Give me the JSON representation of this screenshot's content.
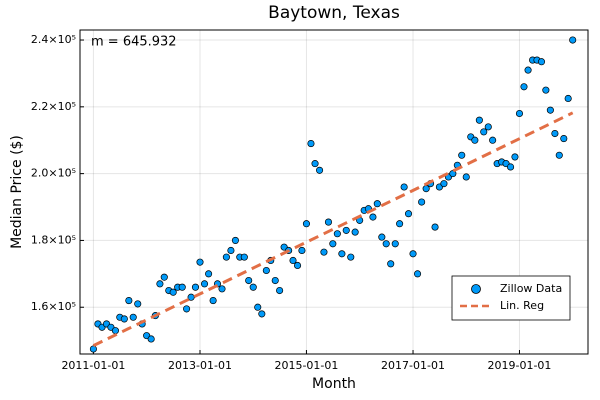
{
  "chart_data": {
    "type": "scatter",
    "title": "Baytown, Texas",
    "xlabel": "Month",
    "ylabel": "Median Price ($)",
    "annotation": "m = 645.932",
    "grid": true,
    "legend": "lower right",
    "xlim": [
      "2010-10-01",
      "2020-04-15"
    ],
    "xticks": [
      "2011-01-01",
      "2013-01-01",
      "2015-01-01",
      "2017-01-01",
      "2019-01-01"
    ],
    "ylim": [
      146000,
      243000
    ],
    "yticks": [
      {
        "value": 160000,
        "label": "1.6×10⁵"
      },
      {
        "value": 180000,
        "label": "1.8×10⁵"
      },
      {
        "value": 200000,
        "label": "2.0×10⁵"
      },
      {
        "value": 220000,
        "label": "2.2×10⁵"
      },
      {
        "value": 240000,
        "label": "2.4×10⁵"
      }
    ],
    "series": [
      {
        "name": "Zillow Data",
        "color": "#009af9",
        "kind": "scatter",
        "x": [
          "2011-01-01",
          "2011-02-01",
          "2011-03-01",
          "2011-04-01",
          "2011-05-01",
          "2011-06-01",
          "2011-07-01",
          "2011-08-01",
          "2011-09-01",
          "2011-10-01",
          "2011-11-01",
          "2011-12-01",
          "2012-01-01",
          "2012-02-01",
          "2012-03-01",
          "2012-04-01",
          "2012-05-01",
          "2012-06-01",
          "2012-07-01",
          "2012-08-01",
          "2012-09-01",
          "2012-10-01",
          "2012-11-01",
          "2012-12-01",
          "2013-01-01",
          "2013-02-01",
          "2013-03-01",
          "2013-04-01",
          "2013-05-01",
          "2013-06-01",
          "2013-07-01",
          "2013-08-01",
          "2013-09-01",
          "2013-10-01",
          "2013-11-01",
          "2013-12-01",
          "2014-01-01",
          "2014-02-01",
          "2014-03-01",
          "2014-04-01",
          "2014-05-01",
          "2014-06-01",
          "2014-07-01",
          "2014-08-01",
          "2014-09-01",
          "2014-10-01",
          "2014-11-01",
          "2014-12-01",
          "2015-01-01",
          "2015-02-01",
          "2015-03-01",
          "2015-04-01",
          "2015-05-01",
          "2015-06-01",
          "2015-07-01",
          "2015-08-01",
          "2015-09-01",
          "2015-10-01",
          "2015-11-01",
          "2015-12-01",
          "2016-01-01",
          "2016-02-01",
          "2016-03-01",
          "2016-04-01",
          "2016-05-01",
          "2016-06-01",
          "2016-07-01",
          "2016-08-01",
          "2016-09-01",
          "2016-10-01",
          "2016-11-01",
          "2016-12-01",
          "2017-01-01",
          "2017-02-01",
          "2017-03-01",
          "2017-04-01",
          "2017-05-01",
          "2017-06-01",
          "2017-07-01",
          "2017-08-01",
          "2017-09-01",
          "2017-10-01",
          "2017-11-01",
          "2017-12-01",
          "2018-01-01",
          "2018-02-01",
          "2018-03-01",
          "2018-04-01",
          "2018-05-01",
          "2018-06-01",
          "2018-07-01",
          "2018-08-01",
          "2018-09-01",
          "2018-10-01",
          "2018-11-01",
          "2018-12-01",
          "2019-01-01",
          "2019-02-01",
          "2019-03-01",
          "2019-04-01",
          "2019-05-01",
          "2019-06-01",
          "2019-07-01",
          "2019-08-01",
          "2019-09-01",
          "2019-10-01",
          "2019-11-01",
          "2019-12-01",
          "2020-01-01"
        ],
        "values": [
          147500,
          155000,
          154000,
          155000,
          154000,
          153000,
          157000,
          156500,
          162000,
          157000,
          161000,
          155000,
          151500,
          150500,
          157500,
          167000,
          169000,
          165000,
          164500,
          166000,
          166000,
          159500,
          163000,
          166000,
          173500,
          167000,
          170000,
          162000,
          167000,
          165500,
          175000,
          177000,
          180000,
          175000,
          175000,
          168000,
          166000,
          160000,
          158000,
          171000,
          174000,
          168000,
          165000,
          178000,
          177000,
          174000,
          172500,
          177000,
          185000,
          209000,
          203000,
          201000,
          176500,
          185500,
          179000,
          182000,
          176000,
          183000,
          175000,
          182500,
          186000,
          189000,
          189500,
          187000,
          191000,
          181000,
          179000,
          173000,
          179000,
          185000,
          196000,
          188000,
          176000,
          170000,
          191500,
          195500,
          197000,
          184000,
          196000,
          197000,
          199000,
          200000,
          202500,
          205500,
          199000,
          211000,
          210000,
          216000,
          212500,
          214000,
          210000,
          203000,
          203500,
          203000,
          202000,
          205000,
          218000,
          226000,
          231000,
          234000,
          234000,
          233500,
          225000,
          219000,
          212000,
          205500,
          210500,
          222500,
          240000
        ]
      },
      {
        "name": "Lin. Reg",
        "color": "#e26f46",
        "kind": "line",
        "x": [
          "2011-01-01",
          "2020-01-01"
        ],
        "values": [
          148500,
          218200
        ]
      }
    ]
  }
}
